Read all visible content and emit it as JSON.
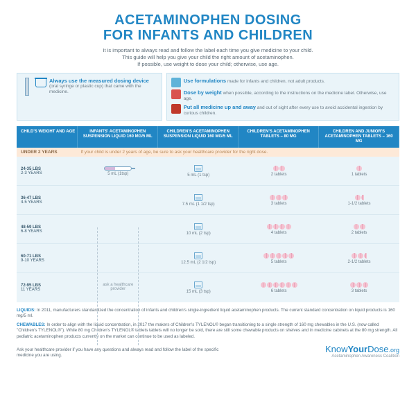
{
  "title_line1": "ACETAMINOPHEN DOSING",
  "title_line2": "FOR INFANTS AND CHILDREN",
  "subtitle": "It is important to always read and follow the label each time you give medicine to your child.\nThis guide will help you give your child the right amount of acetaminophen.\nIf possible, use weight to dose your child; otherwise, use age.",
  "tip_left": {
    "head": "Always use the measured dosing device",
    "body": "(oral syringe or plastic cup) that came with the medicine."
  },
  "tips_right": [
    {
      "color": "#5fb3d9",
      "head": "Use formulations",
      "body": " made for infants and children, not adult products."
    },
    {
      "color": "#d9534f",
      "head": "Dose by weight",
      "body": " when possible, according to the instructions on the medicine label. Otherwise, use age."
    },
    {
      "color": "#c0392b",
      "head": "Put all medicine up and away",
      "body": " and out of sight after every use to avoid accidental ingestion by curious children."
    }
  ],
  "headers": [
    "CHILD'S WEIGHT AND AGE",
    "INFANTS' ACETAMINOPHEN SUSPENSION LIQUID 160 MG/5 ML",
    "CHILDREN'S ACETAMINOPHEN SUSPENSION LIQUID 160 MG/5 ML",
    "CHILDREN'S ACETAMINOPHEN TABLETS – 80 MG",
    "CHILDREN AND JUNIOR'S ACETAMINOPHEN TABLETS – 160 MG"
  ],
  "band": {
    "weight": "UNDER 2 YEARS",
    "note": "If your child is under 2 years of age, be sure to ask your healthcare provider for the right dose."
  },
  "ask_provider": "ask a healthcare provider",
  "rows": [
    {
      "weight": "24-35 LBS",
      "age": "2-3 YEARS",
      "infants": "5 mL (1tsp)",
      "infants_syr": true,
      "children": "5 mL (1 tsp)",
      "t80": 2,
      "t80label": "2 tablets",
      "t160": 1,
      "t160label": "1 tablets"
    },
    {
      "weight": "36-47 LBS",
      "age": "4-5 YEARS",
      "children": "7.5 mL (1 1/2 tsp)",
      "t80": 3,
      "t80label": "3 tablets",
      "t160": 1,
      "t160half": true,
      "t160label": "1-1/2 tablets"
    },
    {
      "weight": "48-59 LBS",
      "age": "6-8 YEARS",
      "children": "10 mL (2 tsp)",
      "t80": 4,
      "t80label": "4 tablets",
      "t160": 2,
      "t160label": "2 tablets"
    },
    {
      "weight": "60-71 LBS",
      "age": "9-10 YEARS",
      "children": "12.5 mL (2 1/2 tsp)",
      "t80": 5,
      "t80label": "5 tablets",
      "t160": 2,
      "t160half": true,
      "t160label": "2-1/2 tablets"
    },
    {
      "weight": "72-95 LBS",
      "age": "11 YEARS",
      "children": "15 mL (3 tsp)",
      "t80": 6,
      "t80label": "6 tablets",
      "t160": 3,
      "t160label": "3 tablets"
    }
  ],
  "notes": {
    "liquids_label": "LIQUIDS:",
    "liquids": " In 2011, manufacturers standardized the concentration of infants and children's single-ingredient liquid acetaminophen products. The current standard concentration on liquid products is 160 mg/5 ml.",
    "chewables_label": "CHEWABLES:",
    "chewables": " In order to align with the liquid concentration, in 2017 the makers of Children's TYLENOL® began transitioning to a single strength of 160 mg chewables in the U.S. (now called \"Children's TYLENOL®\"). While 80 mg Children's TYLENOL® tablets tablets will no longer be sold, there are still some chewable products on shelves and in medicine cabinets at the 80 mg strength. All pediatric acetaminophen products currently on the market can continue to be used as labeled."
  },
  "footer": {
    "ask": "Ask your healthcare provider if you have any questions and always read and follow the label of the specific medicine you are using.",
    "logo": "KnowYourDose.org",
    "logo_bold": "Know",
    "sub": "Acetaminophen Awareness Coalition"
  }
}
